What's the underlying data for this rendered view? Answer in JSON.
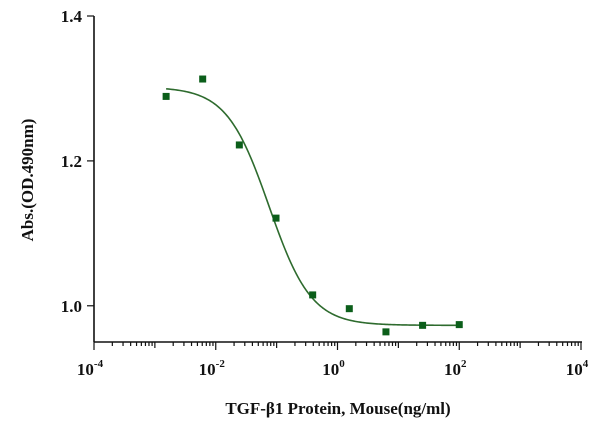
{
  "chart_data": {
    "type": "scatter",
    "title": "",
    "xlabel": "TGF-β1 Protein, Mouse(ng/ml)",
    "ylabel": "Abs.(OD.490nm)",
    "xscale": "log10",
    "xlim": [
      0.0001,
      10000
    ],
    "ylim": [
      0.95,
      1.4
    ],
    "x_ticks": [
      {
        "base": "10",
        "exp": "-4",
        "value": 0.0001
      },
      {
        "base": "10",
        "exp": "-2",
        "value": 0.01
      },
      {
        "base": "10",
        "exp": "0",
        "value": 1
      },
      {
        "base": "10",
        "exp": "2",
        "value": 100
      },
      {
        "base": "10",
        "exp": "4",
        "value": 10000
      }
    ],
    "y_ticks": [
      {
        "label": "1.0",
        "value": 1.0
      },
      {
        "label": "1.2",
        "value": 1.2
      },
      {
        "label": "1.4",
        "value": 1.4
      }
    ],
    "grid": false,
    "series": [
      {
        "name": "TGF-β1 Protein, Mouse",
        "color": "#0b5e1a",
        "marker": "square",
        "x": [
          0.00153,
          0.0061,
          0.0244,
          0.0977,
          0.391,
          1.5625,
          6.25,
          25,
          100
        ],
        "y": [
          1.289,
          1.313,
          1.222,
          1.121,
          1.015,
          0.996,
          0.964,
          0.973,
          0.974
        ]
      }
    ],
    "fit": {
      "model": "4PL",
      "color": "#2e6b2e",
      "top": 1.302,
      "bottom": 0.973,
      "ec50": 0.075,
      "hill": 1.25,
      "x_range": [
        0.00153,
        100
      ]
    }
  }
}
